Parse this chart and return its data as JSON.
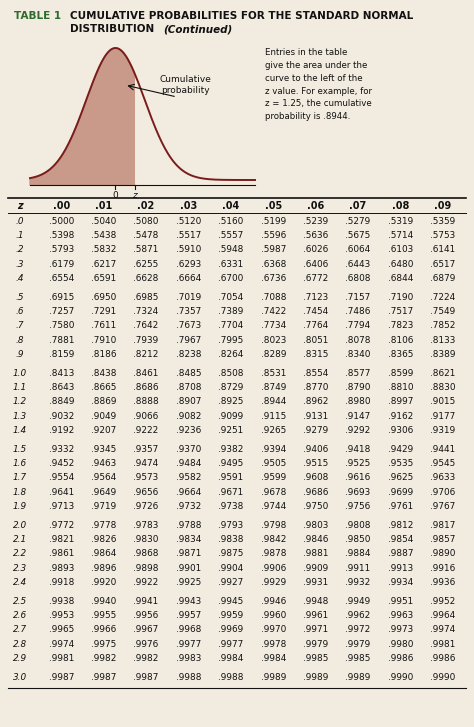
{
  "title_prefix": "TABLE 1",
  "title_main": "CUMULATIVE PROBABILITIES FOR THE STANDARD NORMAL",
  "title_sub": "DISTRIBUTION",
  "title_continued": "(Continued)",
  "curve_annotation": "Cumulative\nprobability",
  "description": "Entries in the table\ngive the area under the\ncurve to the left of the\nz value. For example, for\nz = 1.25, the cumulative\nprobability is .8944.",
  "col_headers": [
    "z",
    ".00",
    ".01",
    ".02",
    ".03",
    ".04",
    ".05",
    ".06",
    ".07",
    ".08",
    ".09"
  ],
  "table_data": [
    [
      ".0",
      ".5000",
      ".5040",
      ".5080",
      ".5120",
      ".5160",
      ".5199",
      ".5239",
      ".5279",
      ".5319",
      ".5359"
    ],
    [
      ".1",
      ".5398",
      ".5438",
      ".5478",
      ".5517",
      ".5557",
      ".5596",
      ".5636",
      ".5675",
      ".5714",
      ".5753"
    ],
    [
      ".2",
      ".5793",
      ".5832",
      ".5871",
      ".5910",
      ".5948",
      ".5987",
      ".6026",
      ".6064",
      ".6103",
      ".6141"
    ],
    [
      ".3",
      ".6179",
      ".6217",
      ".6255",
      ".6293",
      ".6331",
      ".6368",
      ".6406",
      ".6443",
      ".6480",
      ".6517"
    ],
    [
      ".4",
      ".6554",
      ".6591",
      ".6628",
      ".6664",
      ".6700",
      ".6736",
      ".6772",
      ".6808",
      ".6844",
      ".6879"
    ],
    [
      ".5",
      ".6915",
      ".6950",
      ".6985",
      ".7019",
      ".7054",
      ".7088",
      ".7123",
      ".7157",
      ".7190",
      ".7224"
    ],
    [
      ".6",
      ".7257",
      ".7291",
      ".7324",
      ".7357",
      ".7389",
      ".7422",
      ".7454",
      ".7486",
      ".7517",
      ".7549"
    ],
    [
      ".7",
      ".7580",
      ".7611",
      ".7642",
      ".7673",
      ".7704",
      ".7734",
      ".7764",
      ".7794",
      ".7823",
      ".7852"
    ],
    [
      ".8",
      ".7881",
      ".7910",
      ".7939",
      ".7967",
      ".7995",
      ".8023",
      ".8051",
      ".8078",
      ".8106",
      ".8133"
    ],
    [
      ".9",
      ".8159",
      ".8186",
      ".8212",
      ".8238",
      ".8264",
      ".8289",
      ".8315",
      ".8340",
      ".8365",
      ".8389"
    ],
    [
      "1.0",
      ".8413",
      ".8438",
      ".8461",
      ".8485",
      ".8508",
      ".8531",
      ".8554",
      ".8577",
      ".8599",
      ".8621"
    ],
    [
      "1.1",
      ".8643",
      ".8665",
      ".8686",
      ".8708",
      ".8729",
      ".8749",
      ".8770",
      ".8790",
      ".8810",
      ".8830"
    ],
    [
      "1.2",
      ".8849",
      ".8869",
      ".8888",
      ".8907",
      ".8925",
      ".8944",
      ".8962",
      ".8980",
      ".8997",
      ".9015"
    ],
    [
      "1.3",
      ".9032",
      ".9049",
      ".9066",
      ".9082",
      ".9099",
      ".9115",
      ".9131",
      ".9147",
      ".9162",
      ".9177"
    ],
    [
      "1.4",
      ".9192",
      ".9207",
      ".9222",
      ".9236",
      ".9251",
      ".9265",
      ".9279",
      ".9292",
      ".9306",
      ".9319"
    ],
    [
      "1.5",
      ".9332",
      ".9345",
      ".9357",
      ".9370",
      ".9382",
      ".9394",
      ".9406",
      ".9418",
      ".9429",
      ".9441"
    ],
    [
      "1.6",
      ".9452",
      ".9463",
      ".9474",
      ".9484",
      ".9495",
      ".9505",
      ".9515",
      ".9525",
      ".9535",
      ".9545"
    ],
    [
      "1.7",
      ".9554",
      ".9564",
      ".9573",
      ".9582",
      ".9591",
      ".9599",
      ".9608",
      ".9616",
      ".9625",
      ".9633"
    ],
    [
      "1.8",
      ".9641",
      ".9649",
      ".9656",
      ".9664",
      ".9671",
      ".9678",
      ".9686",
      ".9693",
      ".9699",
      ".9706"
    ],
    [
      "1.9",
      ".9713",
      ".9719",
      ".9726",
      ".9732",
      ".9738",
      ".9744",
      ".9750",
      ".9756",
      ".9761",
      ".9767"
    ],
    [
      "2.0",
      ".9772",
      ".9778",
      ".9783",
      ".9788",
      ".9793",
      ".9798",
      ".9803",
      ".9808",
      ".9812",
      ".9817"
    ],
    [
      "2.1",
      ".9821",
      ".9826",
      ".9830",
      ".9834",
      ".9838",
      ".9842",
      ".9846",
      ".9850",
      ".9854",
      ".9857"
    ],
    [
      "2.2",
      ".9861",
      ".9864",
      ".9868",
      ".9871",
      ".9875",
      ".9878",
      ".9881",
      ".9884",
      ".9887",
      ".9890"
    ],
    [
      "2.3",
      ".9893",
      ".9896",
      ".9898",
      ".9901",
      ".9904",
      ".9906",
      ".9909",
      ".9911",
      ".9913",
      ".9916"
    ],
    [
      "2.4",
      ".9918",
      ".9920",
      ".9922",
      ".9925",
      ".9927",
      ".9929",
      ".9931",
      ".9932",
      ".9934",
      ".9936"
    ],
    [
      "2.5",
      ".9938",
      ".9940",
      ".9941",
      ".9943",
      ".9945",
      ".9946",
      ".9948",
      ".9949",
      ".9951",
      ".9952"
    ],
    [
      "2.6",
      ".9953",
      ".9955",
      ".9956",
      ".9957",
      ".9959",
      ".9960",
      ".9961",
      ".9962",
      ".9963",
      ".9964"
    ],
    [
      "2.7",
      ".9965",
      ".9966",
      ".9967",
      ".9968",
      ".9969",
      ".9970",
      ".9971",
      ".9972",
      ".9973",
      ".9974"
    ],
    [
      "2.8",
      ".9974",
      ".9975",
      ".9976",
      ".9977",
      ".9977",
      ".9978",
      ".9979",
      ".9979",
      ".9980",
      ".9981"
    ],
    [
      "2.9",
      ".9981",
      ".9982",
      ".9982",
      ".9983",
      ".9984",
      ".9984",
      ".9985",
      ".9985",
      ".9986",
      ".9986"
    ],
    [
      "3.0",
      ".9987",
      ".9987",
      ".9987",
      ".9988",
      ".9988",
      ".9989",
      ".9989",
      ".9989",
      ".9990",
      ".9990"
    ]
  ],
  "group_breaks": [
    4,
    9,
    14,
    19,
    24,
    29
  ],
  "bg_color": "#f2ece0",
  "dark_red": "#7a1c1c",
  "fill_color": "#c9998a",
  "title_prefix_color": "#2d6a2d",
  "text_color": "#111111"
}
